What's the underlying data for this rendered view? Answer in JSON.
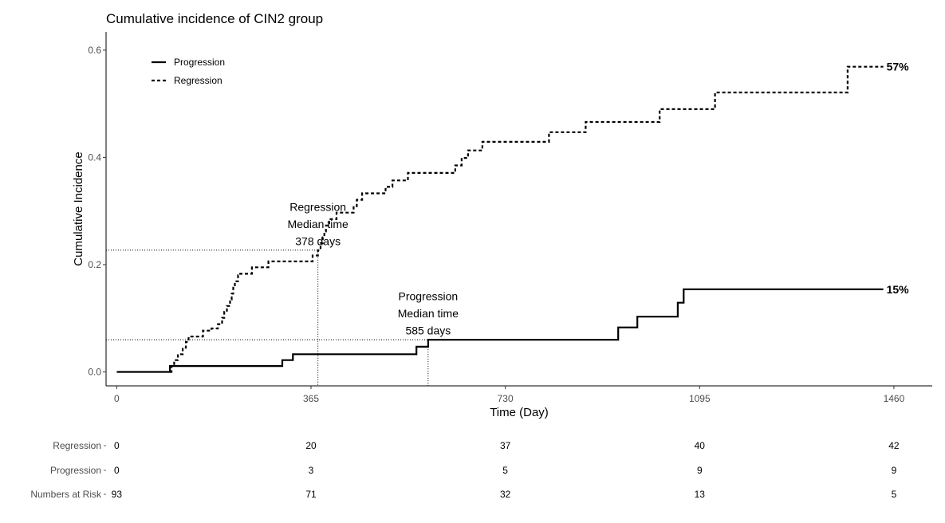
{
  "chart_data": {
    "type": "line",
    "title": "Cumulative incidence of CIN2 group",
    "xlabel": "Time (Day)",
    "ylabel": "Cumulative Incidence",
    "xlim": [
      -20,
      1532
    ],
    "ylim": [
      -0.026,
      0.634
    ],
    "x_ticks": [
      0,
      365,
      730,
      1095,
      1460
    ],
    "y_ticks": [
      0.0,
      0.2,
      0.4,
      0.6
    ],
    "y_tick_labels": [
      "0.0",
      "0.2",
      "0.4",
      "0.6"
    ],
    "legend_position": "top-left",
    "series": [
      {
        "name": "Progression",
        "line_style": "solid",
        "end_label": "15%",
        "steps": [
          [
            0,
            0.0
          ],
          [
            100,
            0.011
          ],
          [
            311,
            0.022
          ],
          [
            331,
            0.033
          ],
          [
            563,
            0.047
          ],
          [
            585,
            0.06
          ],
          [
            942,
            0.083
          ],
          [
            978,
            0.103
          ],
          [
            1054,
            0.129
          ],
          [
            1065,
            0.154
          ],
          [
            1440,
            0.154
          ]
        ]
      },
      {
        "name": "Regression",
        "line_style": "dashed",
        "end_label": "57%",
        "steps": [
          [
            100,
            0.0
          ],
          [
            103,
            0.011
          ],
          [
            108,
            0.022
          ],
          [
            115,
            0.033
          ],
          [
            124,
            0.045
          ],
          [
            130,
            0.056
          ],
          [
            135,
            0.066
          ],
          [
            162,
            0.077
          ],
          [
            178,
            0.081
          ],
          [
            190,
            0.089
          ],
          [
            198,
            0.101
          ],
          [
            202,
            0.112
          ],
          [
            207,
            0.123
          ],
          [
            213,
            0.135
          ],
          [
            216,
            0.146
          ],
          [
            219,
            0.157
          ],
          [
            222,
            0.169
          ],
          [
            228,
            0.18
          ],
          [
            232,
            0.183
          ],
          [
            254,
            0.195
          ],
          [
            285,
            0.206
          ],
          [
            368,
            0.217
          ],
          [
            378,
            0.227
          ],
          [
            383,
            0.24
          ],
          [
            387,
            0.251
          ],
          [
            390,
            0.262
          ],
          [
            393,
            0.273
          ],
          [
            399,
            0.285
          ],
          [
            413,
            0.297
          ],
          [
            445,
            0.309
          ],
          [
            451,
            0.321
          ],
          [
            461,
            0.333
          ],
          [
            505,
            0.345
          ],
          [
            518,
            0.357
          ],
          [
            547,
            0.371
          ],
          [
            636,
            0.385
          ],
          [
            648,
            0.399
          ],
          [
            660,
            0.413
          ],
          [
            687,
            0.429
          ],
          [
            812,
            0.447
          ],
          [
            881,
            0.466
          ],
          [
            1020,
            0.49
          ],
          [
            1124,
            0.521
          ],
          [
            1373,
            0.569
          ],
          [
            1440,
            0.569
          ]
        ]
      }
    ],
    "median_lines": [
      {
        "series": "Regression",
        "x": 378,
        "y": 0.227
      },
      {
        "series": "Progression",
        "x": 585,
        "y": 0.06
      }
    ],
    "annotations": [
      {
        "lines": [
          "Regression",
          "Median time",
          "378 days"
        ],
        "x": 378,
        "y": 0.3
      },
      {
        "lines": [
          "Progression",
          "Median time",
          "585 days"
        ],
        "x": 585,
        "y": 0.134
      }
    ],
    "risk_table": {
      "times": [
        0,
        365,
        730,
        1095,
        1460
      ],
      "rows": [
        {
          "label": "Regression",
          "values": [
            "0",
            "20",
            "37",
            "40",
            "42"
          ]
        },
        {
          "label": "Progression",
          "values": [
            "0",
            "3",
            "5",
            "9",
            "9"
          ]
        },
        {
          "label": "Numbers at Risk",
          "values": [
            "93",
            "71",
            "32",
            "13",
            "5"
          ]
        }
      ]
    }
  }
}
